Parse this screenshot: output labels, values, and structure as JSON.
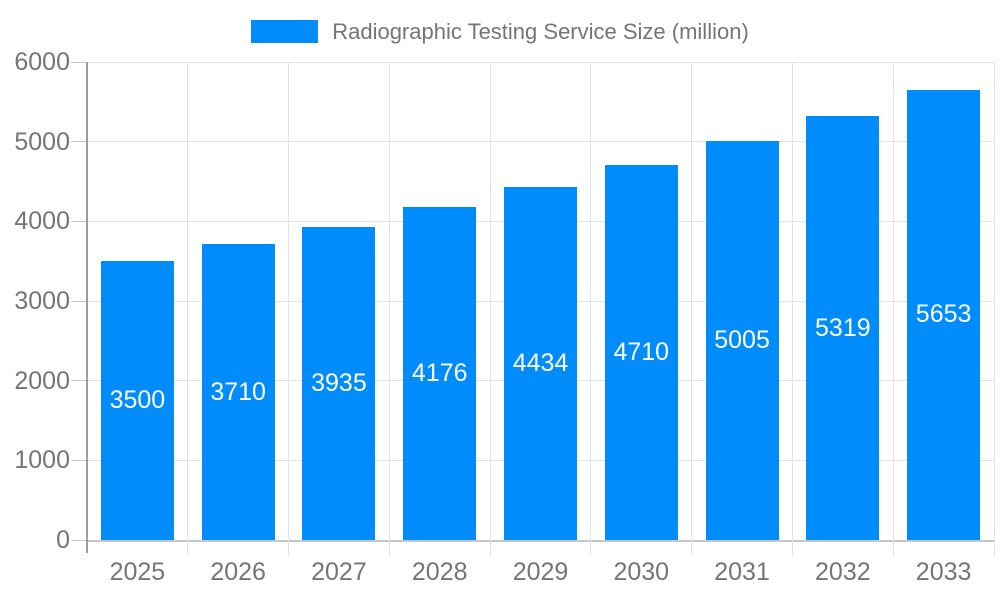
{
  "chart_data": {
    "type": "bar",
    "title": "Radiographic Testing Service Size (million)",
    "categories": [
      "2025",
      "2026",
      "2027",
      "2028",
      "2029",
      "2030",
      "2031",
      "2032",
      "2033"
    ],
    "values": [
      3500,
      3710,
      3935,
      4176,
      4434,
      4710,
      5005,
      5319,
      5653
    ],
    "xlabel": "",
    "ylabel": "",
    "ylim": [
      0,
      6000
    ],
    "yticks": [
      0,
      1000,
      2000,
      3000,
      4000,
      5000,
      6000
    ],
    "legend_position": "top-center",
    "grid": true,
    "bar_labels_visible": true
  },
  "colors": {
    "bar": "#008CFA",
    "axis_text": "#757575",
    "grid_line": "#e3e3e3",
    "axis_line": "#9e9e9e",
    "zero_line": "#c6c6c6",
    "tick_line": "#c6c6c6",
    "value_label": "#ffffff",
    "background": "#ffffff"
  }
}
